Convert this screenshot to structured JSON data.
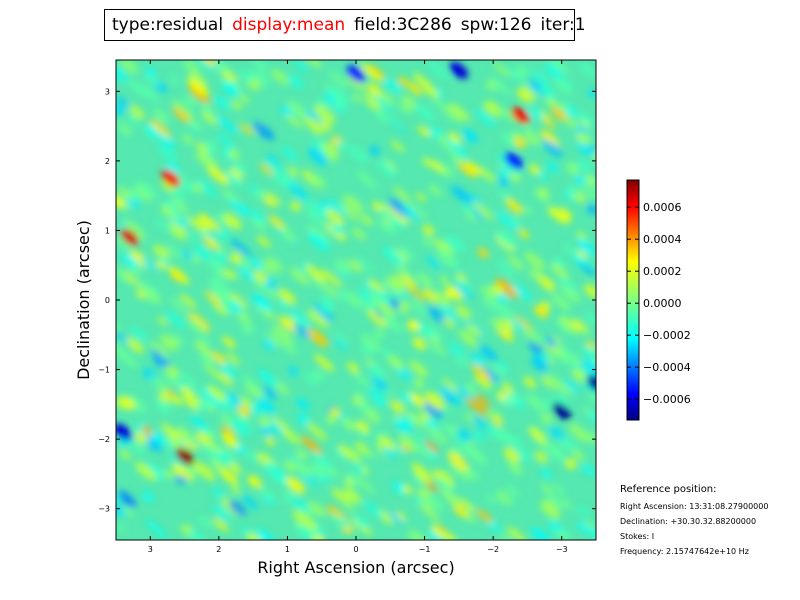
{
  "title": {
    "type": "type:residual",
    "display": "display:mean",
    "field": "field:3C286",
    "spw": "spw:126",
    "iter": "iter:1"
  },
  "colors": {
    "highlight": "#ff0000",
    "colormap": "jet"
  },
  "reference": {
    "heading": "Reference position:",
    "ra": "Right Ascension: 13:31:08.27900000",
    "dec": "Declination: +30.30.32.88200000",
    "stokes": "Stokes: I",
    "frequency": "Frequency: 2.15747642e+10 Hz"
  },
  "chart_data": {
    "type": "heatmap",
    "xlabel": "Right Ascension (arcsec)",
    "ylabel": "Declination (arcsec)",
    "xlim": [
      3.5,
      -3.5
    ],
    "ylim": [
      -3.45,
      3.45
    ],
    "xticks": [
      3,
      2,
      1,
      0,
      -1,
      -2,
      -3
    ],
    "xtick_labels": [
      "3",
      "2",
      "1",
      "0",
      "−1",
      "−2",
      "−3"
    ],
    "yticks": [
      3,
      2,
      1,
      0,
      -1,
      -2,
      -3
    ],
    "ytick_labels": [
      "3",
      "2",
      "1",
      "0",
      "−1",
      "−2",
      "−3"
    ],
    "colorbar": {
      "range": [
        -0.00073,
        0.00077
      ],
      "ticks": [
        0.0006,
        0.0004,
        0.0002,
        0.0,
        -0.0002,
        -0.0004,
        -0.0006
      ],
      "tick_labels": [
        "0.0006",
        "0.0004",
        "0.0002",
        "0.0000",
        "−0.0002",
        "−0.0004",
        "−0.0006"
      ]
    },
    "notable_features": [
      {
        "x": 2.7,
        "y": 1.75,
        "value": 0.0006
      },
      {
        "x": 3.3,
        "y": 0.9,
        "value": 0.00065
      },
      {
        "x": 2.5,
        "y": -2.25,
        "value": 0.00075
      },
      {
        "x": -2.4,
        "y": 2.65,
        "value": 0.0006
      },
      {
        "x": -3.5,
        "y": -1.2,
        "value": -0.0007
      },
      {
        "x": -3.0,
        "y": -1.6,
        "value": -0.0007
      },
      {
        "x": 3.4,
        "y": -1.9,
        "value": -0.0006
      },
      {
        "x": -2.3,
        "y": 2.0,
        "value": -0.0005
      },
      {
        "x": 0.0,
        "y": 3.25,
        "value": -0.0005
      },
      {
        "x": -1.5,
        "y": 3.3,
        "value": -0.0006
      }
    ]
  }
}
